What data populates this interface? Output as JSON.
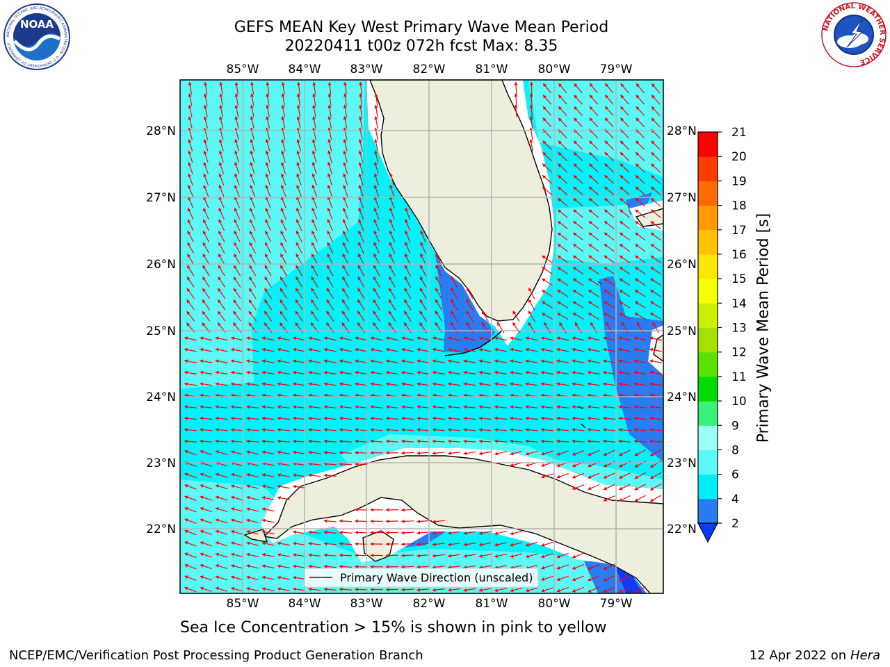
{
  "title_line1": "GEFS MEAN Key West Primary Wave Mean Period",
  "title_line2": "20220411 t00z 072h fcst   Max: 8.35",
  "lon_labels": [
    "85°W",
    "84°W",
    "83°W",
    "82°W",
    "81°W",
    "80°W",
    "79°W"
  ],
  "lat_labels": [
    "28°N",
    "27°N",
    "26°N",
    "25°N",
    "24°N",
    "23°N",
    "22°N"
  ],
  "legend_label": "Primary Wave Direction (unscaled)",
  "colorbar": {
    "label": "Primary Wave Mean Period [s]",
    "ticks": [
      "2",
      "4",
      "6",
      "8",
      "9",
      "10",
      "11",
      "12",
      "13",
      "14",
      "15",
      "16",
      "17",
      "18",
      "19",
      "20",
      "21"
    ],
    "colors": [
      "#0b3bff",
      "#2a7cf2",
      "#00ecf8",
      "#5af8f6",
      "#9bfff8",
      "#38f07a",
      "#00dc00",
      "#5ce000",
      "#a6e000",
      "#cdf000",
      "#f5ff00",
      "#ffe600",
      "#ffc200",
      "#ff9a00",
      "#ff6a00",
      "#ff3c00",
      "#ff0000"
    ]
  },
  "caption": "Sea Ice Concentration > 15% is shown in pink to yellow",
  "footer_left": "NCEP/EMC/Verification Post Processing Product Generation Branch",
  "footer_date": "12 Apr 2022 on ",
  "footer_host": "Hera",
  "noaa_text": "NOAA",
  "noaa_ring_text": "NATIONAL OCEANIC AND ATMOSPHERIC ADMINISTRATION · U.S. DEPARTMENT OF COMMERCE",
  "nws_ring_text": "NATIONAL WEATHER SERVICE",
  "colors": {
    "ocean_main": "#00f2fa",
    "ocean_light": "#5cf8f6",
    "ocean_blue": "#2a7cf2",
    "ocean_dark": "#0b3bff",
    "land": "#eeeedc",
    "arrow": "#ff0000",
    "grid": "#b4b4b4"
  }
}
